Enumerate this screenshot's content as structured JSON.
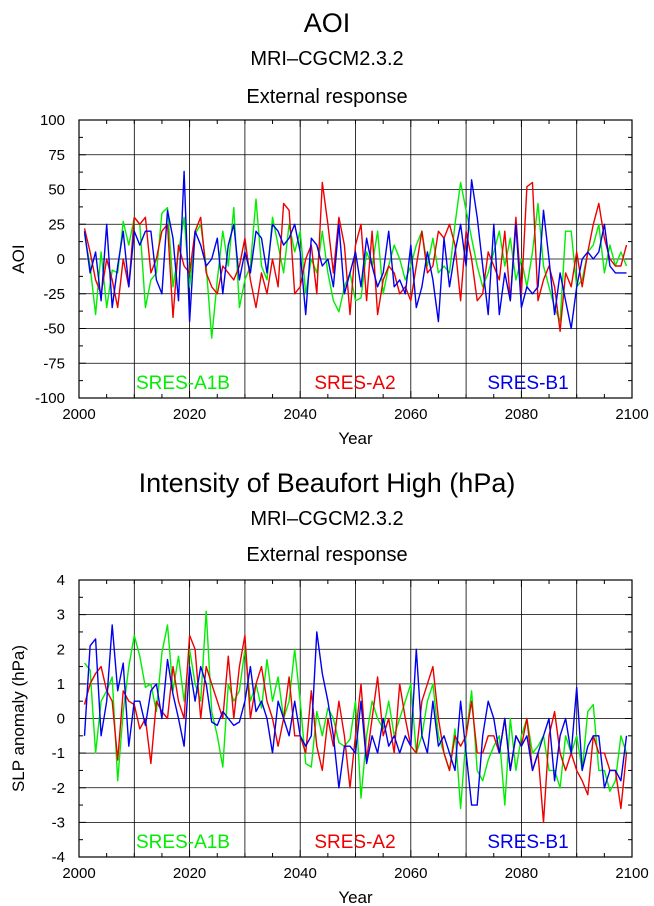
{
  "chart_data": [
    {
      "type": "line",
      "title": "AOI",
      "subtitle": "MRI–CGCM2.3.2",
      "subtitle2": "External response",
      "xlabel": "Year",
      "ylabel": "AOI",
      "xlim": [
        2000,
        2100
      ],
      "ylim": [
        -100,
        100
      ],
      "xticks": [
        2000,
        2020,
        2040,
        2060,
        2080,
        2100
      ],
      "yticks": [
        -100,
        -75,
        -50,
        -25,
        0,
        25,
        50,
        75,
        100
      ],
      "grid": true,
      "legend_placement": "bottom",
      "x": [
        2001,
        2002,
        2003,
        2004,
        2005,
        2006,
        2007,
        2008,
        2009,
        2010,
        2011,
        2012,
        2013,
        2014,
        2015,
        2016,
        2017,
        2018,
        2019,
        2020,
        2021,
        2022,
        2023,
        2024,
        2025,
        2026,
        2027,
        2028,
        2029,
        2030,
        2031,
        2032,
        2033,
        2034,
        2035,
        2036,
        2037,
        2038,
        2039,
        2040,
        2041,
        2042,
        2043,
        2044,
        2045,
        2046,
        2047,
        2048,
        2049,
        2050,
        2051,
        2052,
        2053,
        2054,
        2055,
        2056,
        2057,
        2058,
        2059,
        2060,
        2061,
        2062,
        2063,
        2064,
        2065,
        2066,
        2067,
        2068,
        2069,
        2070,
        2071,
        2072,
        2073,
        2074,
        2075,
        2076,
        2077,
        2078,
        2079,
        2080,
        2081,
        2082,
        2083,
        2084,
        2085,
        2086,
        2087,
        2088,
        2089,
        2090,
        2091,
        2092,
        2093,
        2094,
        2095,
        2096,
        2097,
        2098,
        2099
      ],
      "series": [
        {
          "name": "SRES-A1B",
          "color": "#00ee00",
          "values": [
            18,
            -5,
            -40,
            5,
            -35,
            -8,
            -10,
            27,
            10,
            30,
            25,
            -35,
            -15,
            -10,
            33,
            37,
            -20,
            5,
            30,
            -20,
            18,
            25,
            -5,
            -57,
            -15,
            20,
            -5,
            37,
            -35,
            -15,
            -5,
            43,
            -5,
            -15,
            30,
            10,
            -10,
            25,
            5,
            20,
            -25,
            0,
            -10,
            20,
            -10,
            -30,
            -38,
            -20,
            -10,
            -30,
            -28,
            5,
            -5,
            20,
            -25,
            -5,
            10,
            0,
            -15,
            -5,
            10,
            20,
            -5,
            15,
            -10,
            -5,
            -10,
            25,
            55,
            35,
            15,
            -5,
            -20,
            -10,
            5,
            20,
            -5,
            15,
            -15,
            0,
            -20,
            5,
            40,
            -5,
            -20,
            -35,
            -45,
            20,
            20,
            -20,
            -15,
            5,
            10,
            25,
            -10,
            10,
            -5,
            5,
            -5
          ]
        },
        {
          "name": "SRES-A2",
          "color": "#ee0000",
          "values": [
            22,
            5,
            -15,
            -25,
            0,
            -15,
            -35,
            0,
            -20,
            30,
            25,
            30,
            -10,
            0,
            20,
            25,
            -42,
            10,
            -5,
            -10,
            20,
            30,
            -10,
            -20,
            -25,
            -5,
            -10,
            -15,
            -5,
            15,
            -15,
            -35,
            -10,
            -25,
            0,
            -20,
            40,
            35,
            -25,
            -20,
            0,
            10,
            -25,
            55,
            25,
            -10,
            30,
            10,
            -40,
            10,
            25,
            -30,
            20,
            -40,
            -15,
            -5,
            -10,
            -25,
            -20,
            -30,
            -5,
            20,
            -10,
            -5,
            20,
            15,
            25,
            10,
            -30,
            20,
            0,
            -30,
            -25,
            5,
            -5,
            -15,
            20,
            -30,
            30,
            -25,
            52,
            55,
            -30,
            -15,
            -5,
            -20,
            -52,
            -10,
            -20,
            5,
            -20,
            5,
            25,
            40,
            15,
            0,
            -5,
            -5,
            10
          ]
        },
        {
          "name": "SRES-B1",
          "color": "#0000ee",
          "values": [
            20,
            -10,
            5,
            -30,
            25,
            -35,
            -5,
            20,
            -20,
            20,
            10,
            20,
            20,
            -15,
            -25,
            35,
            15,
            -30,
            63,
            -45,
            20,
            10,
            -5,
            0,
            15,
            -25,
            10,
            25,
            -15,
            5,
            -10,
            20,
            15,
            -10,
            25,
            20,
            10,
            15,
            25,
            5,
            -40,
            15,
            10,
            -5,
            0,
            -20,
            25,
            -25,
            -10,
            5,
            -20,
            15,
            -5,
            -20,
            -10,
            20,
            -20,
            -15,
            -25,
            10,
            -35,
            -20,
            5,
            -15,
            -45,
            15,
            -20,
            5,
            25,
            -5,
            57,
            30,
            -5,
            -40,
            25,
            -40,
            -10,
            -30,
            25,
            -35,
            -20,
            -25,
            -20,
            35,
            0,
            -40,
            -10,
            -30,
            -50,
            -20,
            0,
            5,
            0,
            5,
            25,
            -5,
            -10,
            -10,
            -10
          ]
        }
      ]
    },
    {
      "type": "line",
      "title": "Intensity of Beaufort High (hPa)",
      "subtitle": "MRI–CGCM2.3.2",
      "subtitle2": "External response",
      "xlabel": "Year",
      "ylabel": "SLP anomaly (hPa)",
      "xlim": [
        2000,
        2100
      ],
      "ylim": [
        -4,
        4
      ],
      "xticks": [
        2000,
        2020,
        2040,
        2060,
        2080,
        2100
      ],
      "yticks": [
        -4,
        -3,
        -2,
        -1,
        0,
        1,
        2,
        3,
        4
      ],
      "grid": true,
      "legend_placement": "bottom",
      "x": [
        2001,
        2002,
        2003,
        2004,
        2005,
        2006,
        2007,
        2008,
        2009,
        2010,
        2011,
        2012,
        2013,
        2014,
        2015,
        2016,
        2017,
        2018,
        2019,
        2020,
        2021,
        2022,
        2023,
        2024,
        2025,
        2026,
        2027,
        2028,
        2029,
        2030,
        2031,
        2032,
        2033,
        2034,
        2035,
        2036,
        2037,
        2038,
        2039,
        2040,
        2041,
        2042,
        2043,
        2044,
        2045,
        2046,
        2047,
        2048,
        2049,
        2050,
        2051,
        2052,
        2053,
        2054,
        2055,
        2056,
        2057,
        2058,
        2059,
        2060,
        2061,
        2062,
        2063,
        2064,
        2065,
        2066,
        2067,
        2068,
        2069,
        2070,
        2071,
        2072,
        2073,
        2074,
        2075,
        2076,
        2077,
        2078,
        2079,
        2080,
        2081,
        2082,
        2083,
        2084,
        2085,
        2086,
        2087,
        2088,
        2089,
        2090,
        2091,
        2092,
        2093,
        2094,
        2095,
        2096,
        2097,
        2098,
        2099
      ],
      "series": [
        {
          "name": "SRES-A1B",
          "color": "#00ee00",
          "values": [
            1.6,
            1.4,
            -1.0,
            0.5,
            0.8,
            1.2,
            -1.8,
            0.2,
            1.5,
            2.4,
            1.8,
            0.9,
            1.0,
            0.2,
            1.9,
            2.7,
            0.8,
            1.8,
            0.5,
            2.0,
            1.0,
            0.5,
            3.1,
            0.2,
            -0.5,
            -1.4,
            1.0,
            0.5,
            0.8,
            2.0,
            0.5,
            1.0,
            0.3,
            1.7,
            0.5,
            1.2,
            0.0,
            0.5,
            2.0,
            0.5,
            -1.3,
            -1.4,
            0.2,
            -0.5,
            0.3,
            0.0,
            -0.7,
            -0.8,
            -0.6,
            0.5,
            -2.3,
            -0.5,
            0.5,
            0.0,
            -0.3,
            0.5,
            -0.5,
            0.0,
            0.5,
            1.0,
            -1.0,
            -0.5,
            0.5,
            1.0,
            -0.5,
            -1.0,
            -1.5,
            -0.3,
            -2.6,
            -0.5,
            0.8,
            -1.5,
            -1.8,
            -1.2,
            -0.8,
            -0.5,
            -2.5,
            0.0,
            -1.5,
            -0.5,
            0.0,
            -1.0,
            -0.8,
            -0.5,
            -1.5,
            -1.5,
            -2.0,
            -0.5,
            -1.0,
            -0.5,
            -1.5,
            0.2,
            0.4,
            -1.5,
            -1.5,
            -2.1,
            -1.8,
            -0.5,
            -1.0
          ]
        },
        {
          "name": "SRES-A2",
          "color": "#ee0000",
          "values": [
            0.4,
            1.0,
            1.3,
            1.5,
            0.8,
            0.5,
            -1.2,
            0.8,
            0.5,
            0.4,
            -0.3,
            0.0,
            -1.3,
            0.5,
            0.2,
            0.0,
            1.5,
            0.5,
            0.0,
            2.4,
            2.0,
            0.0,
            1.5,
            1.0,
            0.5,
            0.0,
            1.8,
            0.0,
            1.5,
            2.4,
            0.0,
            1.0,
            1.5,
            0.5,
            0.0,
            -0.8,
            0.0,
            1.2,
            -0.5,
            -0.5,
            -1.0,
            0.8,
            -0.8,
            -1.5,
            0.0,
            -0.8,
            0.5,
            -0.5,
            -2.0,
            -0.5,
            1.0,
            -1.2,
            0.0,
            1.2,
            -0.5,
            0.0,
            -1.0,
            1.0,
            0.0,
            -0.8,
            -1.0,
            0.5,
            1.0,
            1.5,
            0.0,
            -1.0,
            -1.5,
            -0.5,
            -0.8,
            -0.5,
            0.5,
            -1.0,
            -1.0,
            -0.5,
            -0.5,
            -1.0,
            0.0,
            -1.5,
            -0.5,
            -0.8,
            0.0,
            -1.5,
            -1.0,
            -3.0,
            -0.5,
            0.2,
            -1.0,
            -1.5,
            -1.0,
            -1.5,
            -1.8,
            -2.2,
            -0.5,
            -1.0,
            -1.0,
            -1.5,
            -1.5,
            -2.6,
            -1.0
          ]
        },
        {
          "name": "SRES-B1",
          "color": "#0000ee",
          "values": [
            -0.5,
            2.1,
            2.3,
            -0.5,
            0.5,
            2.7,
            0.8,
            1.6,
            -0.8,
            0.5,
            0.5,
            -0.2,
            0.8,
            1.0,
            0.0,
            1.7,
            0.7,
            0.0,
            -0.8,
            1.5,
            0.5,
            1.5,
            1.0,
            -0.1,
            -0.2,
            0.2,
            0.0,
            -0.2,
            -0.1,
            0.5,
            1.5,
            0.2,
            0.5,
            0.0,
            -1.0,
            0.5,
            0.0,
            -0.5,
            0.5,
            -0.5,
            -0.8,
            -0.5,
            2.5,
            1.3,
            0.5,
            -0.5,
            -2.0,
            -0.8,
            -0.8,
            -1.0,
            0.5,
            -1.3,
            -0.5,
            -1.0,
            0.0,
            -0.8,
            -0.5,
            -1.0,
            -0.5,
            -0.8,
            2.0,
            -0.5,
            -1.0,
            0.5,
            -0.8,
            -0.5,
            -1.0,
            -1.5,
            0.5,
            -1.0,
            -2.5,
            -2.5,
            -0.5,
            0.5,
            0.0,
            -1.0,
            0.0,
            -1.5,
            -0.5,
            -0.8,
            -0.5,
            -1.5,
            -1.0,
            -0.5,
            0.0,
            -1.8,
            -0.5,
            0.0,
            -1.0,
            0.9,
            -1.5,
            -0.8,
            -0.5,
            -0.5,
            -2.0,
            -1.5,
            -1.5,
            -1.8,
            -0.5
          ]
        }
      ]
    }
  ]
}
